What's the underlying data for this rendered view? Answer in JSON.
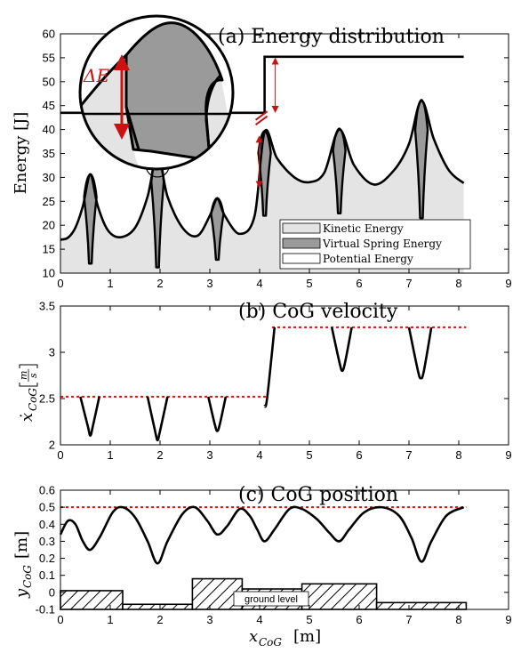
{
  "colors": {
    "kinetic_fill": "#e4e4e4",
    "spring_fill": "#9a9a9a",
    "potential_fill": "#ffffff",
    "curve": "#000000",
    "dashed_ref": "#dd1111",
    "annotation": "#cc1111"
  },
  "chart_data": [
    {
      "type": "area",
      "title": "(a) Energy distribution",
      "xlabel": "",
      "ylabel": "Energy [J]",
      "xlim": [
        0,
        9
      ],
      "ylim": [
        10,
        60
      ],
      "xticks": [
        "0",
        "1",
        "2",
        "3",
        "4",
        "5",
        "6",
        "7",
        "8",
        "9"
      ],
      "yticks": [
        "10",
        "15",
        "20",
        "25",
        "30",
        "35",
        "40",
        "45",
        "50",
        "55",
        "60"
      ],
      "total_energy": {
        "x": [
          0,
          4.1,
          4.1,
          8.1
        ],
        "y": [
          43.5,
          43.5,
          55.2,
          55.2
        ]
      },
      "kinetic_energy": {
        "x": [
          0,
          0.15,
          0.3,
          0.45,
          0.6,
          0.75,
          0.95,
          1.2,
          1.5,
          1.75,
          1.95,
          2.15,
          2.45,
          2.75,
          3.0,
          3.15,
          3.3,
          3.6,
          3.9,
          4.1,
          4.35,
          4.7,
          5.0,
          5.3,
          5.6,
          5.9,
          6.3,
          6.7,
          7.0,
          7.25,
          7.5,
          7.8,
          8.1
        ],
        "y": [
          17.0,
          17.4,
          19.5,
          24.0,
          30.5,
          24.0,
          19.0,
          17.5,
          19.5,
          26.0,
          35.0,
          26.0,
          19.5,
          17.8,
          22.0,
          25.5,
          22.0,
          18.2,
          22.0,
          39.5,
          34.0,
          30.0,
          29.0,
          31.0,
          40.0,
          32.5,
          28.5,
          31.5,
          37.0,
          46.0,
          38.0,
          31.5,
          28.8
        ]
      },
      "spring_dips": [
        {
          "x": 0.6,
          "min": 12.0
        },
        {
          "x": 1.95,
          "min": 11.2
        },
        {
          "x": 3.15,
          "min": 12.8
        },
        {
          "x": 4.1,
          "min": 22.0
        },
        {
          "x": 5.6,
          "min": 22.5
        },
        {
          "x": 7.25,
          "min": 21.5
        }
      ],
      "annotation": "ΔE",
      "legend": [
        "Kinetic Energy",
        "Virtual Spring Energy",
        "Potential Energy"
      ],
      "legend_placement": "bottom-right"
    },
    {
      "type": "line",
      "title": "(b) CoG velocity",
      "xlabel": "",
      "ylabel": "ẋ",
      "ylabel_sub": "CoG",
      "ylabel_unit_num": "m",
      "ylabel_unit_den": "s",
      "xlim": [
        0,
        9
      ],
      "ylim": [
        2,
        3.5
      ],
      "xticks": [
        "0",
        "1",
        "2",
        "3",
        "4",
        "5",
        "6",
        "7",
        "8",
        "9"
      ],
      "yticks": [
        "2",
        "2.5",
        "3",
        "3.5"
      ],
      "reference": [
        {
          "x": [
            0,
            4.15
          ],
          "y": 2.52
        },
        {
          "x": [
            4.25,
            8.15
          ],
          "y": 3.27
        }
      ],
      "velocity": {
        "x": [
          0.4,
          0.55,
          0.6,
          0.65,
          0.78,
          1.75,
          1.9,
          1.95,
          2.0,
          2.15,
          2.97,
          3.1,
          3.15,
          3.2,
          3.32,
          4.1,
          4.15,
          4.3,
          5.45,
          5.6,
          5.66,
          5.72,
          5.85,
          7.0,
          7.18,
          7.24,
          7.3,
          7.45
        ],
        "y": [
          2.52,
          2.2,
          2.1,
          2.2,
          2.52,
          2.52,
          2.15,
          2.05,
          2.15,
          2.52,
          2.52,
          2.22,
          2.15,
          2.22,
          2.52,
          2.42,
          2.5,
          3.27,
          3.27,
          2.9,
          2.8,
          2.9,
          3.27,
          3.27,
          2.8,
          2.72,
          2.8,
          3.27
        ]
      }
    },
    {
      "type": "line",
      "title": "(c) CoG position",
      "xlabel": "x",
      "xlabel_sub": "CoG",
      "xlabel_unit": "[m]",
      "ylabel": "y",
      "ylabel_sub": "CoG",
      "ylabel_unit": "[m]",
      "xlim": [
        0,
        9
      ],
      "ylim": [
        -0.1,
        0.6
      ],
      "xticks": [
        "0",
        "1",
        "2",
        "3",
        "4",
        "5",
        "6",
        "7",
        "8",
        "9"
      ],
      "yticks": [
        "-0.1",
        "0",
        "0.1",
        "0.2",
        "0.3",
        "0.4",
        "0.5",
        "0.6"
      ],
      "reference_y": 0.5,
      "position": {
        "x": [
          0,
          0.15,
          0.3,
          0.45,
          0.6,
          0.8,
          1.05,
          1.25,
          1.5,
          1.75,
          1.95,
          2.15,
          2.45,
          2.7,
          2.95,
          3.15,
          3.35,
          3.6,
          3.8,
          3.95,
          4.1,
          4.3,
          4.6,
          4.85,
          5.15,
          5.4,
          5.6,
          5.8,
          6.1,
          6.45,
          6.8,
          7.05,
          7.25,
          7.45,
          7.75,
          8.1
        ],
        "y": [
          0.34,
          0.42,
          0.4,
          0.3,
          0.25,
          0.33,
          0.47,
          0.5,
          0.44,
          0.3,
          0.17,
          0.3,
          0.46,
          0.5,
          0.42,
          0.34,
          0.39,
          0.49,
          0.45,
          0.37,
          0.3,
          0.37,
          0.49,
          0.49,
          0.43,
          0.35,
          0.3,
          0.37,
          0.47,
          0.5,
          0.45,
          0.32,
          0.18,
          0.3,
          0.45,
          0.5
        ]
      },
      "ground_segments": [
        {
          "x0": 0,
          "x1": 1.25,
          "top": 0.01
        },
        {
          "x0": 1.25,
          "x1": 2.65,
          "top": -0.07
        },
        {
          "x0": 2.65,
          "x1": 3.65,
          "top": 0.08
        },
        {
          "x0": 3.65,
          "x1": 4.85,
          "top": 0.02
        },
        {
          "x0": 4.85,
          "x1": 6.35,
          "top": 0.05
        },
        {
          "x0": 6.35,
          "x1": 8.15,
          "top": -0.06
        }
      ],
      "ground_label": "ground level"
    }
  ]
}
